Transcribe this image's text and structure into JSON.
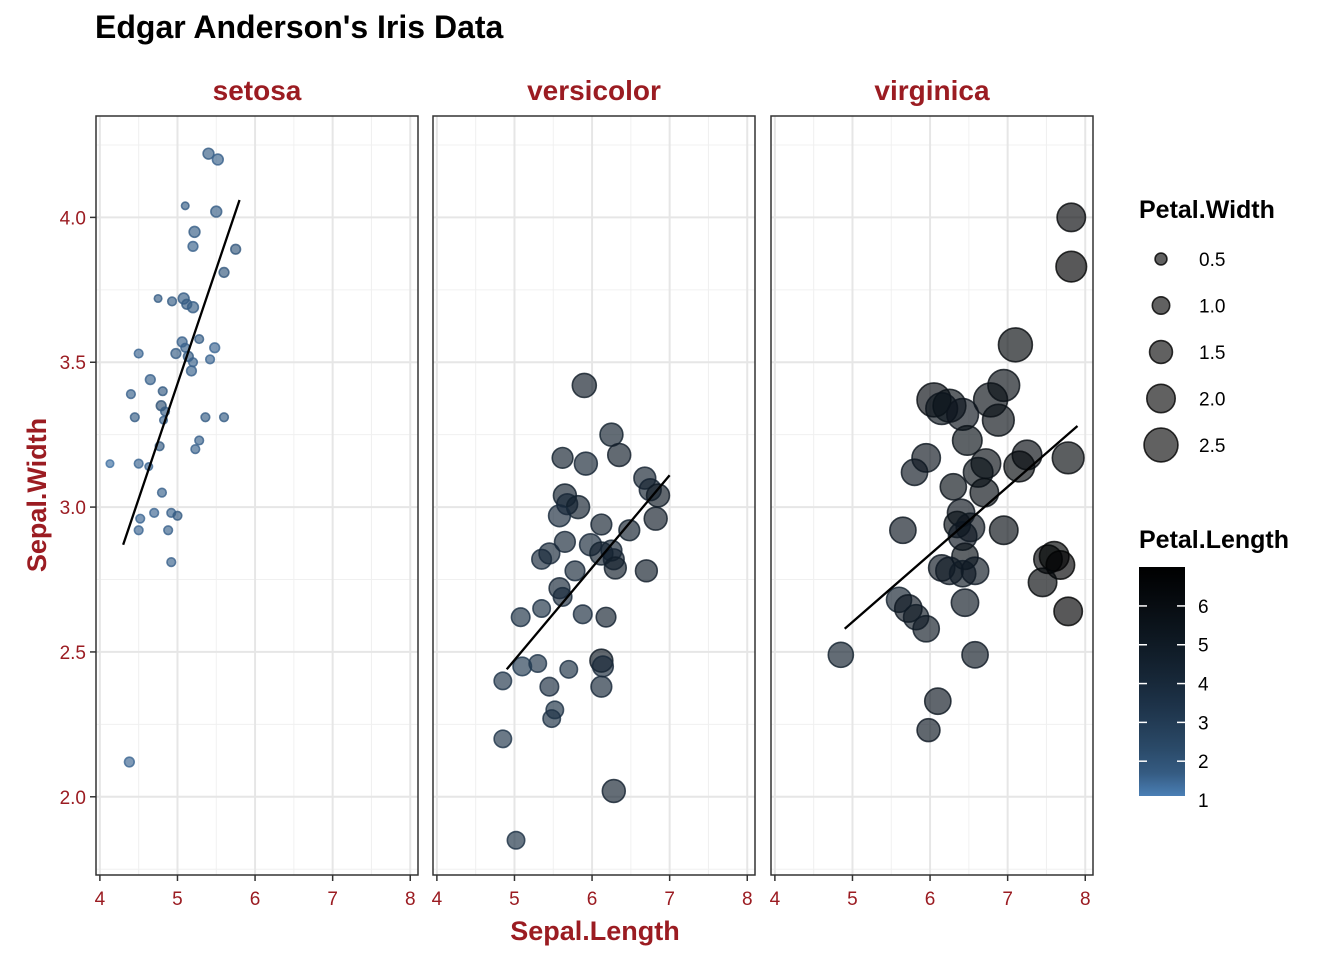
{
  "chart_data": {
    "type": "scatter",
    "title": "Edgar Anderson's Iris Data",
    "xlabel": "Sepal.Length",
    "ylabel": "Sepal.Width",
    "xlim": [
      3.95,
      8.1
    ],
    "ylim": [
      1.73,
      4.35
    ],
    "x_ticks": [
      "4",
      "5",
      "6",
      "7",
      "8"
    ],
    "y_ticks": [
      "2.0",
      "2.5",
      "3.0",
      "3.5",
      "4.0"
    ],
    "grid": true,
    "size_legend": {
      "title": "Petal.Width",
      "values": [
        0.5,
        1.0,
        1.5,
        2.0,
        2.5
      ],
      "labels": [
        "0.5",
        "1.0",
        "1.5",
        "2.0",
        "2.5"
      ]
    },
    "color_legend": {
      "title": "Petal.Length",
      "range": [
        1,
        6.9
      ],
      "ticks": [
        "1",
        "2",
        "3",
        "4",
        "5",
        "6"
      ],
      "low_color": "#4a7fb5",
      "high_color": "#000000"
    },
    "colors": {
      "strip_text": "#9b1c22",
      "axis_text": "#9b1c22",
      "fit_line": "#000000"
    },
    "panels": [
      {
        "name": "setosa",
        "fit_line": {
          "x": [
            4.3,
            5.8
          ],
          "y": [
            2.87,
            4.06
          ]
        },
        "points": [
          {
            "x": 5.4,
            "y": 4.22,
            "pw": 0.4,
            "pl": 1.5
          },
          {
            "x": 5.52,
            "y": 4.2,
            "pw": 0.4,
            "pl": 1.4
          },
          {
            "x": 5.1,
            "y": 4.04,
            "pw": 0.1,
            "pl": 1.5
          },
          {
            "x": 5.5,
            "y": 4.02,
            "pw": 0.4,
            "pl": 1.5
          },
          {
            "x": 5.22,
            "y": 3.95,
            "pw": 0.4,
            "pl": 1.5
          },
          {
            "x": 5.2,
            "y": 3.9,
            "pw": 0.3,
            "pl": 1.4
          },
          {
            "x": 5.75,
            "y": 3.89,
            "pw": 0.3,
            "pl": 1.7
          },
          {
            "x": 5.6,
            "y": 3.81,
            "pw": 0.3,
            "pl": 1.7
          },
          {
            "x": 4.75,
            "y": 3.72,
            "pw": 0.1,
            "pl": 1.5
          },
          {
            "x": 4.93,
            "y": 3.71,
            "pw": 0.2,
            "pl": 1.5
          },
          {
            "x": 5.08,
            "y": 3.72,
            "pw": 0.4,
            "pl": 1.5
          },
          {
            "x": 5.12,
            "y": 3.7,
            "pw": 0.3,
            "pl": 1.6
          },
          {
            "x": 5.2,
            "y": 3.69,
            "pw": 0.4,
            "pl": 1.5
          },
          {
            "x": 5.06,
            "y": 3.57,
            "pw": 0.3,
            "pl": 1.4
          },
          {
            "x": 5.28,
            "y": 3.58,
            "pw": 0.2,
            "pl": 1.5
          },
          {
            "x": 5.48,
            "y": 3.55,
            "pw": 0.3,
            "pl": 1.3
          },
          {
            "x": 4.5,
            "y": 3.53,
            "pw": 0.2,
            "pl": 1.3
          },
          {
            "x": 5.1,
            "y": 3.55,
            "pw": 0.2,
            "pl": 1.4
          },
          {
            "x": 5.14,
            "y": 3.52,
            "pw": 0.3,
            "pl": 1.6
          },
          {
            "x": 4.98,
            "y": 3.53,
            "pw": 0.3,
            "pl": 1.5
          },
          {
            "x": 5.2,
            "y": 3.5,
            "pw": 0.2,
            "pl": 1.4
          },
          {
            "x": 5.42,
            "y": 3.51,
            "pw": 0.2,
            "pl": 1.3
          },
          {
            "x": 5.18,
            "y": 3.47,
            "pw": 0.3,
            "pl": 1.4
          },
          {
            "x": 4.65,
            "y": 3.44,
            "pw": 0.3,
            "pl": 1.4
          },
          {
            "x": 4.4,
            "y": 3.39,
            "pw": 0.2,
            "pl": 1.4
          },
          {
            "x": 4.81,
            "y": 3.4,
            "pw": 0.2,
            "pl": 1.6
          },
          {
            "x": 4.79,
            "y": 3.35,
            "pw": 0.3,
            "pl": 1.9
          },
          {
            "x": 4.84,
            "y": 3.33,
            "pw": 0.2,
            "pl": 1.6
          },
          {
            "x": 4.45,
            "y": 3.31,
            "pw": 0.2,
            "pl": 1.5
          },
          {
            "x": 4.82,
            "y": 3.3,
            "pw": 0.1,
            "pl": 1.4
          },
          {
            "x": 5.36,
            "y": 3.31,
            "pw": 0.2,
            "pl": 1.5
          },
          {
            "x": 5.6,
            "y": 3.31,
            "pw": 0.2,
            "pl": 1.5
          },
          {
            "x": 5.28,
            "y": 3.23,
            "pw": 0.2,
            "pl": 1.4
          },
          {
            "x": 4.77,
            "y": 3.21,
            "pw": 0.2,
            "pl": 1.6
          },
          {
            "x": 5.23,
            "y": 3.2,
            "pw": 0.2,
            "pl": 1.4
          },
          {
            "x": 4.13,
            "y": 3.15,
            "pw": 0.1,
            "pl": 1.1
          },
          {
            "x": 4.5,
            "y": 3.15,
            "pw": 0.2,
            "pl": 1.3
          },
          {
            "x": 4.63,
            "y": 3.14,
            "pw": 0.1,
            "pl": 1.3
          },
          {
            "x": 4.8,
            "y": 3.05,
            "pw": 0.2,
            "pl": 1.4
          },
          {
            "x": 4.92,
            "y": 2.98,
            "pw": 0.2,
            "pl": 1.4
          },
          {
            "x": 5.0,
            "y": 2.97,
            "pw": 0.2,
            "pl": 1.6
          },
          {
            "x": 4.52,
            "y": 2.96,
            "pw": 0.2,
            "pl": 1.3
          },
          {
            "x": 4.7,
            "y": 2.98,
            "pw": 0.2,
            "pl": 1.3
          },
          {
            "x": 4.5,
            "y": 2.92,
            "pw": 0.2,
            "pl": 1.3
          },
          {
            "x": 4.88,
            "y": 2.92,
            "pw": 0.2,
            "pl": 1.4
          },
          {
            "x": 4.92,
            "y": 2.81,
            "pw": 0.2,
            "pl": 1.4
          },
          {
            "x": 4.38,
            "y": 2.12,
            "pw": 0.3,
            "pl": 1.3
          }
        ]
      },
      {
        "name": "versicolor",
        "fit_line": {
          "x": [
            4.9,
            7.0
          ],
          "y": [
            2.44,
            3.11
          ]
        },
        "points": [
          {
            "x": 5.9,
            "y": 3.42,
            "pw": 1.6,
            "pl": 4.8
          },
          {
            "x": 6.25,
            "y": 3.25,
            "pw": 1.5,
            "pl": 4.5
          },
          {
            "x": 6.35,
            "y": 3.18,
            "pw": 1.5,
            "pl": 4.7
          },
          {
            "x": 5.62,
            "y": 3.17,
            "pw": 1.3,
            "pl": 4.5
          },
          {
            "x": 5.92,
            "y": 3.15,
            "pw": 1.5,
            "pl": 4.2
          },
          {
            "x": 6.68,
            "y": 3.1,
            "pw": 1.4,
            "pl": 4.4
          },
          {
            "x": 6.75,
            "y": 3.06,
            "pw": 1.4,
            "pl": 4.4
          },
          {
            "x": 6.85,
            "y": 3.04,
            "pw": 1.5,
            "pl": 4.9
          },
          {
            "x": 5.65,
            "y": 3.04,
            "pw": 1.5,
            "pl": 4.5
          },
          {
            "x": 5.68,
            "y": 3.01,
            "pw": 1.3,
            "pl": 4.1
          },
          {
            "x": 5.82,
            "y": 3.0,
            "pw": 1.5,
            "pl": 4.5
          },
          {
            "x": 5.58,
            "y": 2.97,
            "pw": 1.4,
            "pl": 3.9
          },
          {
            "x": 6.82,
            "y": 2.96,
            "pw": 1.5,
            "pl": 4.8
          },
          {
            "x": 6.12,
            "y": 2.94,
            "pw": 1.3,
            "pl": 4.4
          },
          {
            "x": 6.48,
            "y": 2.92,
            "pw": 1.3,
            "pl": 4.5
          },
          {
            "x": 5.65,
            "y": 2.88,
            "pw": 1.3,
            "pl": 4.1
          },
          {
            "x": 5.98,
            "y": 2.87,
            "pw": 1.4,
            "pl": 4.0
          },
          {
            "x": 6.12,
            "y": 2.84,
            "pw": 1.5,
            "pl": 4.5
          },
          {
            "x": 6.25,
            "y": 2.85,
            "pw": 1.3,
            "pl": 4.3
          },
          {
            "x": 5.35,
            "y": 2.82,
            "pw": 1.2,
            "pl": 3.9
          },
          {
            "x": 5.45,
            "y": 2.84,
            "pw": 1.3,
            "pl": 4.0
          },
          {
            "x": 6.28,
            "y": 2.82,
            "pw": 1.3,
            "pl": 4.4
          },
          {
            "x": 5.78,
            "y": 2.78,
            "pw": 1.2,
            "pl": 4.0
          },
          {
            "x": 6.3,
            "y": 2.79,
            "pw": 1.4,
            "pl": 4.6
          },
          {
            "x": 6.7,
            "y": 2.78,
            "pw": 1.4,
            "pl": 4.7
          },
          {
            "x": 5.58,
            "y": 2.72,
            "pw": 1.3,
            "pl": 4.1
          },
          {
            "x": 5.62,
            "y": 2.69,
            "pw": 1.1,
            "pl": 3.9
          },
          {
            "x": 5.35,
            "y": 2.65,
            "pw": 1.0,
            "pl": 3.5
          },
          {
            "x": 5.08,
            "y": 2.62,
            "pw": 1.1,
            "pl": 3.5
          },
          {
            "x": 5.88,
            "y": 2.63,
            "pw": 1.1,
            "pl": 3.8
          },
          {
            "x": 6.18,
            "y": 2.62,
            "pw": 1.2,
            "pl": 4.4
          },
          {
            "x": 6.12,
            "y": 2.47,
            "pw": 1.5,
            "pl": 4.9
          },
          {
            "x": 6.14,
            "y": 2.45,
            "pw": 1.3,
            "pl": 4.0
          },
          {
            "x": 5.3,
            "y": 2.46,
            "pw": 1.0,
            "pl": 3.3
          },
          {
            "x": 5.1,
            "y": 2.45,
            "pw": 1.1,
            "pl": 3.0
          },
          {
            "x": 5.7,
            "y": 2.44,
            "pw": 1.0,
            "pl": 3.5
          },
          {
            "x": 4.85,
            "y": 2.4,
            "pw": 1.0,
            "pl": 3.3
          },
          {
            "x": 5.45,
            "y": 2.38,
            "pw": 1.1,
            "pl": 3.7
          },
          {
            "x": 6.12,
            "y": 2.38,
            "pw": 1.3,
            "pl": 4.0
          },
          {
            "x": 5.52,
            "y": 2.3,
            "pw": 1.0,
            "pl": 3.5
          },
          {
            "x": 5.48,
            "y": 2.27,
            "pw": 1.0,
            "pl": 3.5
          },
          {
            "x": 4.85,
            "y": 2.2,
            "pw": 1.0,
            "pl": 3.3
          },
          {
            "x": 6.28,
            "y": 2.02,
            "pw": 1.5,
            "pl": 4.4
          },
          {
            "x": 5.02,
            "y": 1.85,
            "pw": 1.0,
            "pl": 3.5
          }
        ]
      },
      {
        "name": "virginica",
        "fit_line": {
          "x": [
            4.9,
            7.9
          ],
          "y": [
            2.58,
            3.28
          ]
        },
        "points": [
          {
            "x": 7.82,
            "y": 4.0,
            "pw": 2.0,
            "pl": 6.4
          },
          {
            "x": 7.82,
            "y": 3.83,
            "pw": 2.2,
            "pl": 6.7
          },
          {
            "x": 7.1,
            "y": 3.56,
            "pw": 2.5,
            "pl": 6.1
          },
          {
            "x": 6.95,
            "y": 3.42,
            "pw": 2.3,
            "pl": 5.7
          },
          {
            "x": 6.05,
            "y": 3.37,
            "pw": 2.5,
            "pl": 6.0
          },
          {
            "x": 6.25,
            "y": 3.35,
            "pw": 2.4,
            "pl": 5.6
          },
          {
            "x": 6.15,
            "y": 3.34,
            "pw": 2.3,
            "pl": 5.4
          },
          {
            "x": 6.78,
            "y": 3.37,
            "pw": 2.5,
            "pl": 5.7
          },
          {
            "x": 6.42,
            "y": 3.32,
            "pw": 2.3,
            "pl": 5.3
          },
          {
            "x": 6.88,
            "y": 3.3,
            "pw": 2.3,
            "pl": 5.7
          },
          {
            "x": 6.48,
            "y": 3.23,
            "pw": 2.1,
            "pl": 5.6
          },
          {
            "x": 7.25,
            "y": 3.18,
            "pw": 2.1,
            "pl": 5.9
          },
          {
            "x": 5.95,
            "y": 3.17,
            "pw": 2.0,
            "pl": 5.2
          },
          {
            "x": 7.78,
            "y": 3.17,
            "pw": 2.3,
            "pl": 6.1
          },
          {
            "x": 6.72,
            "y": 3.15,
            "pw": 2.1,
            "pl": 5.7
          },
          {
            "x": 7.15,
            "y": 3.14,
            "pw": 2.2,
            "pl": 6.1
          },
          {
            "x": 5.8,
            "y": 3.12,
            "pw": 1.8,
            "pl": 5.1
          },
          {
            "x": 6.62,
            "y": 3.12,
            "pw": 2.1,
            "pl": 5.5
          },
          {
            "x": 6.3,
            "y": 3.07,
            "pw": 1.8,
            "pl": 5.5
          },
          {
            "x": 6.7,
            "y": 3.05,
            "pw": 2.0,
            "pl": 5.8
          },
          {
            "x": 6.4,
            "y": 2.98,
            "pw": 1.9,
            "pl": 5.3
          },
          {
            "x": 6.35,
            "y": 2.94,
            "pw": 1.8,
            "pl": 5.6
          },
          {
            "x": 6.52,
            "y": 2.93,
            "pw": 2.0,
            "pl": 5.2
          },
          {
            "x": 6.42,
            "y": 2.9,
            "pw": 2.0,
            "pl": 5.1
          },
          {
            "x": 6.95,
            "y": 2.92,
            "pw": 2.0,
            "pl": 5.8
          },
          {
            "x": 5.65,
            "y": 2.92,
            "pw": 1.8,
            "pl": 5.1
          },
          {
            "x": 6.45,
            "y": 2.83,
            "pw": 1.8,
            "pl": 5.5
          },
          {
            "x": 7.52,
            "y": 2.82,
            "pw": 2.0,
            "pl": 6.4
          },
          {
            "x": 7.6,
            "y": 2.83,
            "pw": 2.1,
            "pl": 6.6
          },
          {
            "x": 7.68,
            "y": 2.8,
            "pw": 2.0,
            "pl": 6.7
          },
          {
            "x": 6.15,
            "y": 2.79,
            "pw": 1.8,
            "pl": 5.1
          },
          {
            "x": 6.25,
            "y": 2.78,
            "pw": 1.9,
            "pl": 5.0
          },
          {
            "x": 6.42,
            "y": 2.77,
            "pw": 1.8,
            "pl": 4.9
          },
          {
            "x": 6.58,
            "y": 2.78,
            "pw": 1.9,
            "pl": 5.0
          },
          {
            "x": 7.45,
            "y": 2.74,
            "pw": 2.0,
            "pl": 6.3
          },
          {
            "x": 5.6,
            "y": 2.68,
            "pw": 1.7,
            "pl": 4.5
          },
          {
            "x": 5.72,
            "y": 2.65,
            "pw": 1.9,
            "pl": 5.1
          },
          {
            "x": 7.78,
            "y": 2.64,
            "pw": 2.0,
            "pl": 6.7
          },
          {
            "x": 5.82,
            "y": 2.62,
            "pw": 1.7,
            "pl": 4.9
          },
          {
            "x": 6.45,
            "y": 2.67,
            "pw": 1.9,
            "pl": 5.0
          },
          {
            "x": 5.95,
            "y": 2.58,
            "pw": 1.8,
            "pl": 4.9
          },
          {
            "x": 4.85,
            "y": 2.49,
            "pw": 1.7,
            "pl": 4.5
          },
          {
            "x": 6.58,
            "y": 2.49,
            "pw": 1.8,
            "pl": 5.0
          },
          {
            "x": 6.1,
            "y": 2.33,
            "pw": 1.8,
            "pl": 5.1
          },
          {
            "x": 5.98,
            "y": 2.23,
            "pw": 1.5,
            "pl": 5.0
          }
        ]
      }
    ]
  }
}
